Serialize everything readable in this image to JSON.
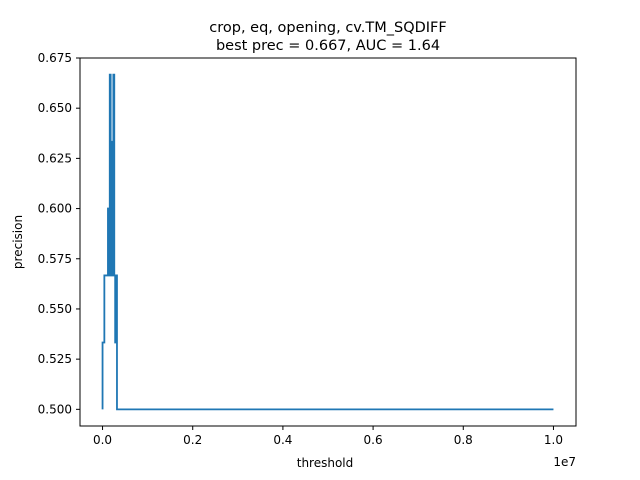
{
  "chart_data": {
    "type": "line",
    "title_line1": "crop, eq, opening, cv.TM_SQDIFF",
    "title_line2": "best prec = 0.667, AUC = 1.64",
    "xlabel": "threshold",
    "ylabel": "precision",
    "x_offset_label": "1e7",
    "xlim": [
      -500000,
      10500000
    ],
    "ylim": [
      0.4917,
      0.675
    ],
    "x_ticks": [
      0,
      2000000,
      4000000,
      6000000,
      8000000,
      10000000
    ],
    "x_tick_labels": [
      "0.0",
      "0.2",
      "0.4",
      "0.6",
      "0.8",
      "1.0"
    ],
    "y_ticks": [
      0.5,
      0.525,
      0.55,
      0.575,
      0.6,
      0.625,
      0.65,
      0.675
    ],
    "y_tick_labels": [
      "0.500",
      "0.525",
      "0.550",
      "0.575",
      "0.600",
      "0.625",
      "0.650",
      "0.675"
    ],
    "series": [
      {
        "color": "#1f77b4",
        "drawstyle": "steps",
        "x": [
          0,
          40000,
          120000,
          140000,
          160000,
          180000,
          200000,
          220000,
          240000,
          260000,
          280000,
          300000,
          320000,
          340000,
          10000000
        ],
        "y": [
          0.5,
          0.5333,
          0.5667,
          0.6,
          0.5667,
          0.6667,
          0.5667,
          0.6333,
          0.5667,
          0.6667,
          0.5667,
          0.5333,
          0.5667,
          0.5,
          0.5
        ]
      }
    ]
  }
}
